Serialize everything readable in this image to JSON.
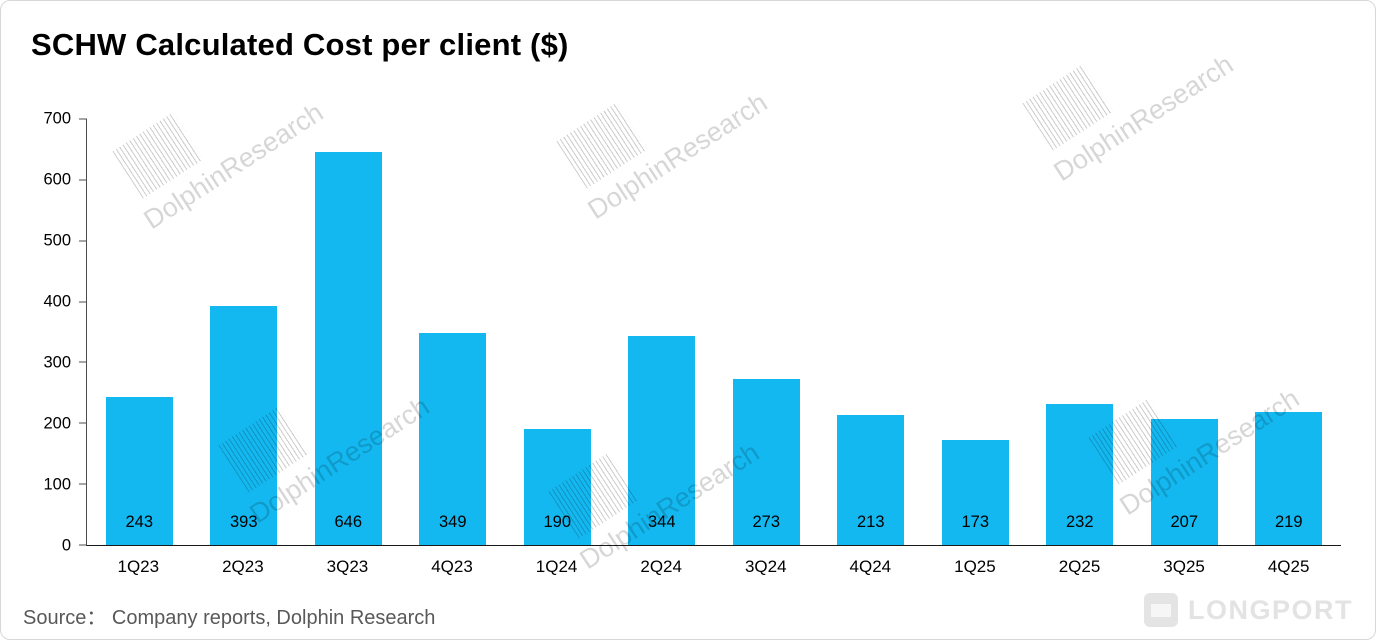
{
  "title": "SCHW Calculated Cost per client  ($)",
  "source": {
    "text": "Source： Company reports, Dolphin Research"
  },
  "watermark": {
    "text": "DolphinResearch"
  },
  "logo": {
    "text": "LONGPORT"
  },
  "colors": {
    "bar": "#14b8f0",
    "axis": "#1a1a1a",
    "source_text": "#595959",
    "watermark": "#cccccc"
  },
  "chart_data": {
    "type": "bar",
    "title": "SCHW Calculated Cost per client  ($)",
    "categories": [
      "1Q23",
      "2Q23",
      "3Q23",
      "4Q23",
      "1Q24",
      "2Q24",
      "3Q24",
      "4Q24",
      "1Q25",
      "2Q25",
      "3Q25",
      "4Q25"
    ],
    "values": [
      243,
      393,
      646,
      349,
      190,
      344,
      273,
      213,
      173,
      232,
      207,
      219
    ],
    "xlabel": "",
    "ylabel": "",
    "ylim": [
      0,
      700
    ],
    "yticks": [
      0,
      100,
      200,
      300,
      400,
      500,
      600,
      700
    ],
    "grid": false,
    "legend": false,
    "bar_color": "#14b8f0",
    "value_labels_position": "inside-bottom"
  }
}
